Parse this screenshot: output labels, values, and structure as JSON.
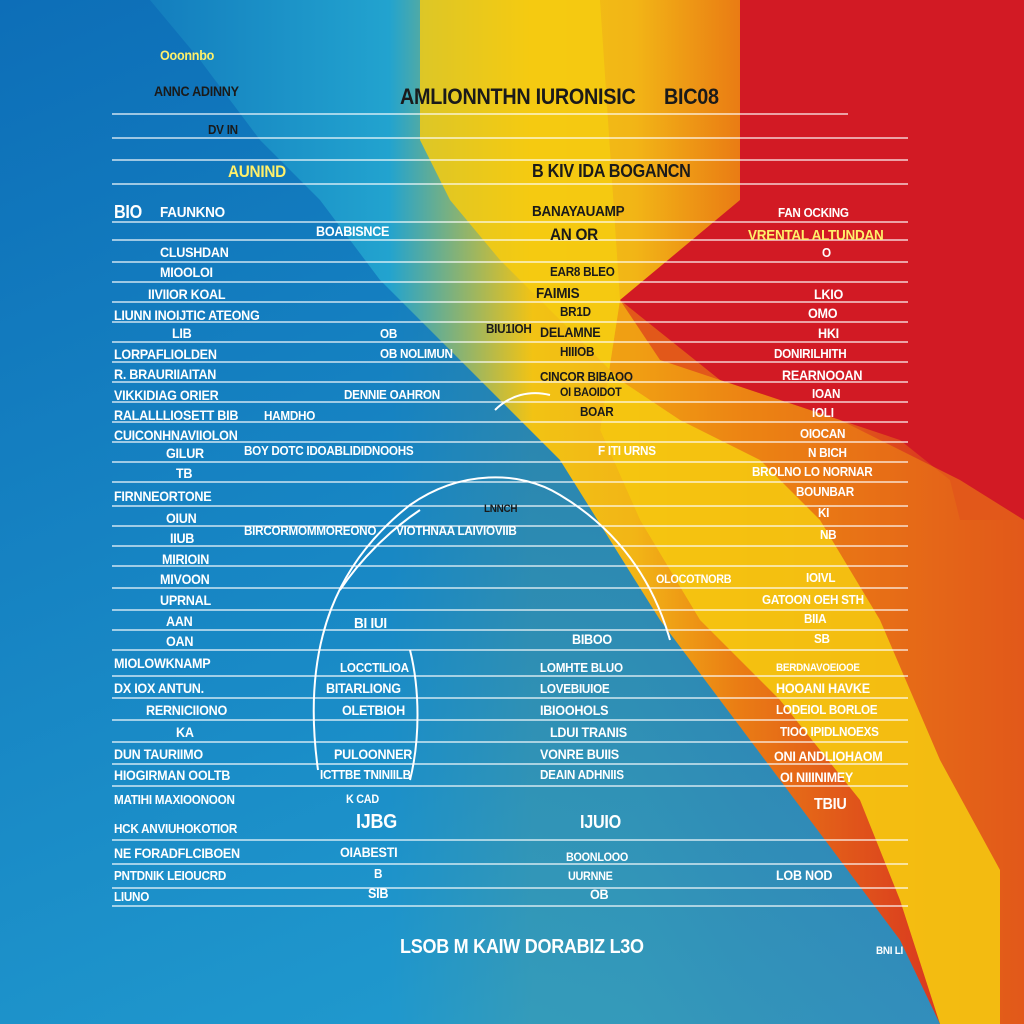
{
  "colors": {
    "blue": "#0a66b3",
    "cyan": "#22a3cf",
    "yellow": "#f2c314",
    "orange": "#ea7d14",
    "red": "#d21a24",
    "line_color": "#ffffff"
  },
  "header": {
    "top_left_small": "Ooonnbo",
    "top_left_label": "ANNC ADINNY",
    "title": "AMLIONNTHN IURONISIC",
    "title_code": "BIC08",
    "sub_left": "DV IN",
    "sub_center": "B KIV IDA BOGANCN",
    "section_left": "AUNIND"
  },
  "columns": {
    "left_head_a": "BIO",
    "left_head_b": "FAUNKNO",
    "mid_head_a": "BOABISNCE",
    "center_head_a": "BANAYAUAMP",
    "center_head_b": "AN OR",
    "right_head_a": "FAN   OCKING",
    "right_head_b": "VRENTAL ALTUNDAN"
  },
  "rows": {
    "left": [
      "CLUSHDAN",
      "MIOOLOI",
      "IIVIIOR KOAL",
      "LIUNN INOIJTIC ATEONG",
      "LIB",
      "LORPAFLIOLDEN",
      "R. BRAURIIAITAN",
      "VIKKIDIAG ORIER",
      "RALALLLIOSETT BIB",
      "CUICONHNAVIIOLON",
      "GILUR",
      "TB",
      "FIRNNEORTONE",
      "OIUN",
      "IIUB",
      "MIRIOIN",
      "MIVOON",
      "UPRNAL",
      "AAN",
      "OAN",
      "MIOLOWKNAMP",
      "DX IOX ANTUN.",
      "RERNICIIONO",
      "KA",
      "DUN TAURIIMO",
      "HIOGIRMAN OOLTB",
      "MATIHI MAXIOONOON",
      "HCK ANVIUHOKOTIOR",
      "NE FORADFLCIBOEN",
      "PNTDNIK LEIOUCRD",
      "LIUNO"
    ],
    "mid": [
      "OB",
      "OB NOLIMUN",
      "DENNIE OAHRON",
      "HAMDHO",
      "BOY DOTC IDOABLIDIDNOOHS",
      "BIRCORMOMMOREONO"
    ],
    "center": [
      "EAR8 BLEO",
      "FAIMIS",
      "BR1D",
      "BIU1IOH",
      "DELAMNE",
      "HIIIOB",
      "CINCOR BIBAOO",
      "OI BAOIDOT",
      "BOAR",
      "F ITI URNS",
      "LNNCH",
      "VIOTHNAA LAIVIOVIIB",
      "BI IUI",
      "BIBOO",
      "LOCCTILIOA",
      "BITARLIONG",
      "OLETBIOH",
      "PULOONNER",
      "ICTTBE TNINIILB",
      "LOMHTE BLUO",
      "LOVEBIUIOE",
      "IBIOOHOLS",
      "LDUI TRANIS",
      "VONRE BUIIS",
      "DEAIN ADHNIIS"
    ],
    "right": [
      "O",
      "LKIO",
      "OMO",
      "HKI",
      "DONIRILHITH",
      "REARNOOAN",
      "IOAN",
      "IOLI",
      "OIOCAN",
      "N BICH",
      "BROLNO LO NORNAR",
      "BOUNBAR",
      "KI",
      "NB",
      "IOIVL",
      "GATOON OEH STH",
      "BIIA",
      "SB",
      "OLOCOTNORB",
      "BERDNAVOEIOOE",
      "HOOANI HAVKE",
      "LODEIOL BORLOE",
      "TIOO IPIDLNOEXS",
      "ONI ANDLIOHAOM",
      "OI NIIINIMEY"
    ]
  },
  "bottom": {
    "mid_a": "K CAD",
    "mid_b": "IJBG",
    "mid_c": "OIABESTI",
    "mid_d": "B",
    "mid_e": "SIB",
    "center_a": "IJUIO",
    "center_b": "BOONLOOO",
    "center_c": "UURNNE",
    "center_d": "OB",
    "right_a": "TBIU",
    "right_b": "LOB   NOD",
    "footer": "LSOB M KAIW DORABIZ L3O",
    "corner": "BNI LI"
  }
}
